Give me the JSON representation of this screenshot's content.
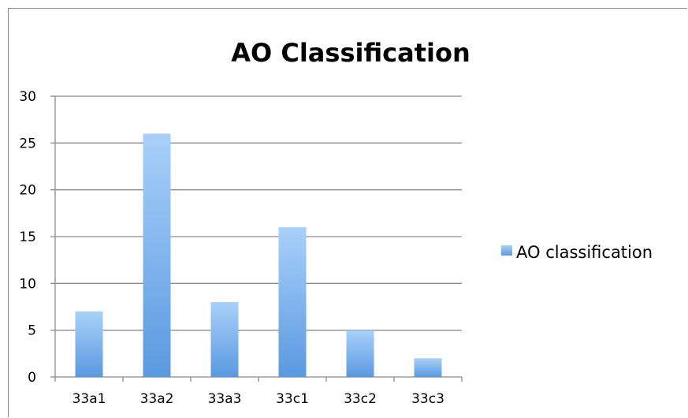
{
  "chart_data": {
    "type": "bar",
    "title": "AO Classification",
    "categories": [
      "33a1",
      "33a2",
      "33a3",
      "33c1",
      "33c2",
      "33c3"
    ],
    "series": [
      {
        "name": "AO classification",
        "values": [
          7,
          26,
          8,
          16,
          5,
          2
        ],
        "color": "#6aa8ec"
      }
    ],
    "xlabel": "",
    "ylabel": "",
    "ylim": [
      0,
      30
    ],
    "yticks": [
      0,
      5,
      10,
      15,
      20,
      25,
      30
    ],
    "grid": true,
    "legend_position": "right"
  }
}
